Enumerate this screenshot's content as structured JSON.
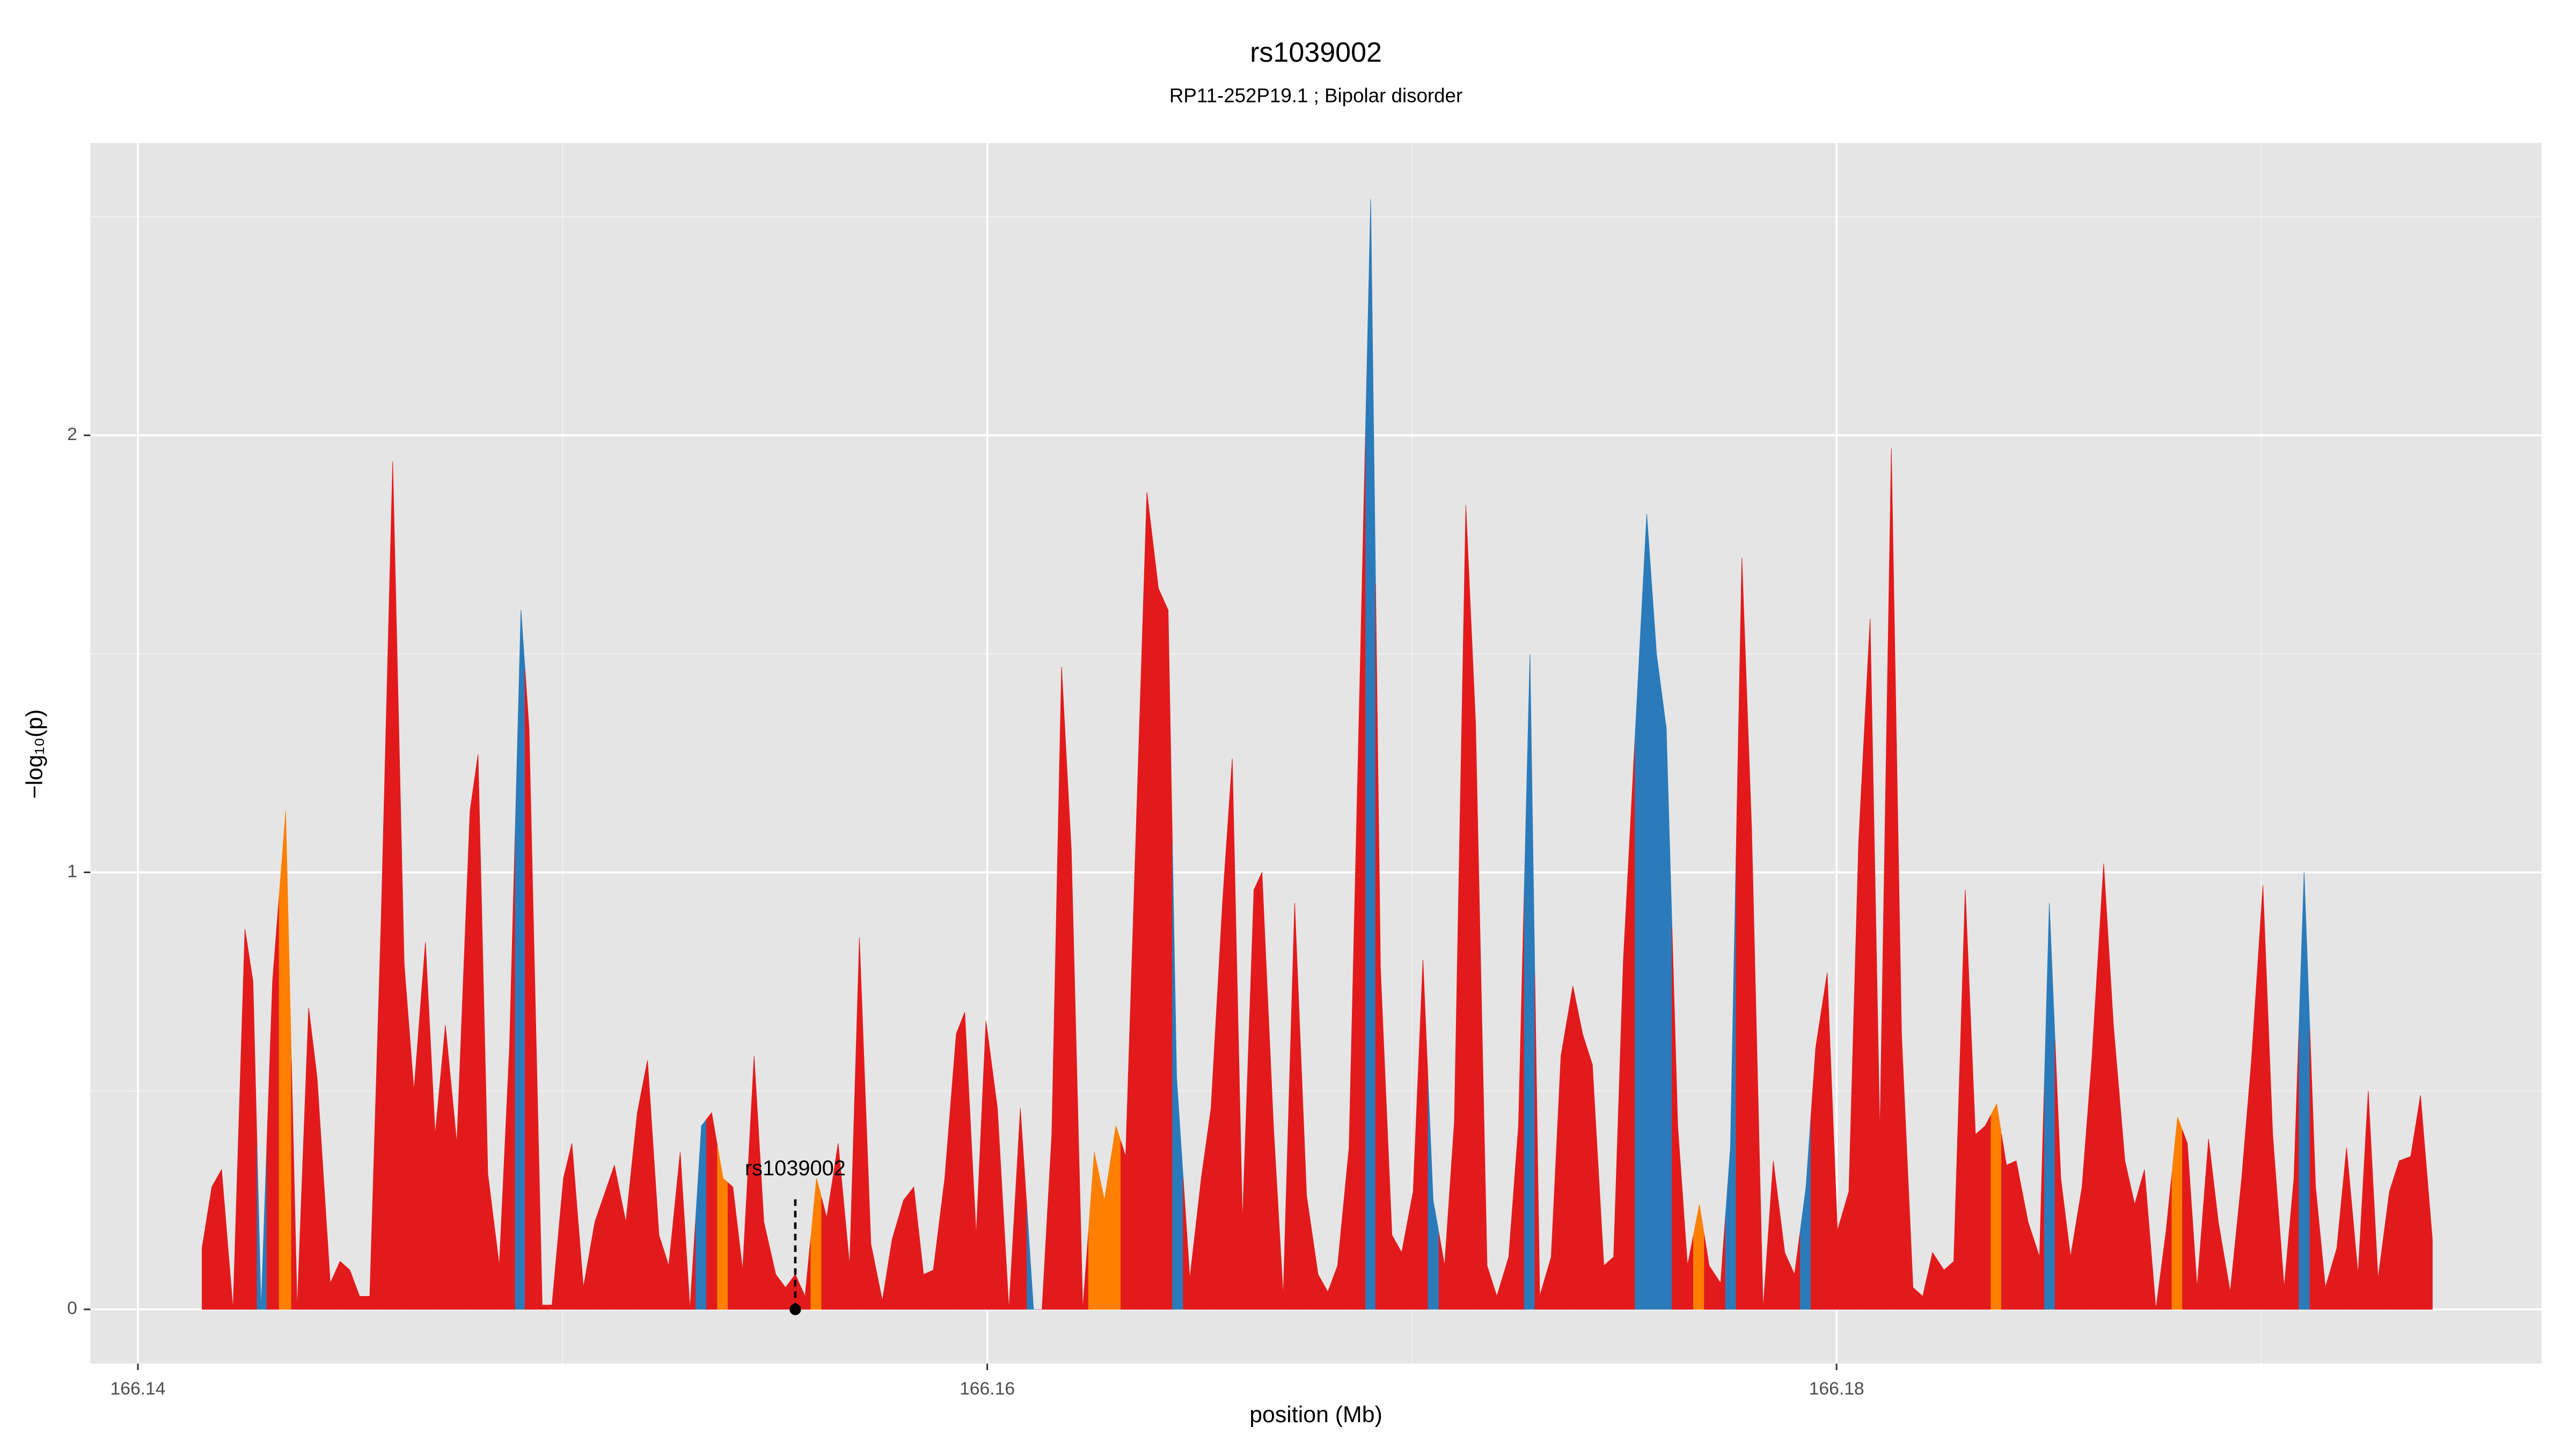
{
  "chart_data": {
    "type": "area",
    "title": "rs1039002",
    "subtitle": "RP11-252P19.1 ; Bipolar disorder",
    "x_label": "position (Mb)",
    "y_label": "−log₁₀(p)",
    "xlim": [
      166.13888,
      166.1966
    ],
    "ylim": [
      -0.124,
      2.669
    ],
    "xticks": [
      166.14,
      166.16,
      166.18
    ],
    "yticks": [
      0,
      1,
      2
    ],
    "x_minor_grid": [
      166.15,
      166.17,
      166.19
    ],
    "y_minor_grid": [
      0.5,
      1.5,
      2.5
    ],
    "grid": true,
    "x": [
      166.14151,
      166.14174,
      166.14197,
      166.14224,
      166.14252,
      166.14271,
      166.1429,
      166.14317,
      166.14348,
      166.14375,
      166.14402,
      166.14422,
      166.14453,
      166.14476,
      166.14499,
      166.14522,
      166.14546,
      166.14573,
      166.146,
      166.14627,
      166.1465,
      166.14677,
      166.147,
      166.14724,
      166.14751,
      166.14782,
      166.14801,
      166.14824,
      166.14851,
      166.14875,
      166.14902,
      166.14921,
      166.14952,
      166.14975,
      166.15002,
      166.15022,
      166.15049,
      166.15076,
      166.15122,
      166.15149,
      166.15176,
      166.152,
      166.15227,
      166.1525,
      166.15277,
      166.153,
      166.15327,
      166.15351,
      166.15378,
      166.15401,
      166.15424,
      166.15451,
      166.15474,
      166.15502,
      166.15525,
      166.15548,
      166.15571,
      166.15598,
      166.15622,
      166.15649,
      166.15676,
      166.15699,
      166.15726,
      166.15753,
      166.15776,
      166.15803,
      166.15827,
      166.1585,
      166.15873,
      166.159,
      166.15927,
      166.15947,
      166.15974,
      166.15997,
      166.16024,
      166.16051,
      166.16078,
      166.16109,
      166.16129,
      166.16152,
      166.16175,
      166.16198,
      166.16225,
      166.16252,
      166.16276,
      166.16303,
      166.16326,
      166.16376,
      166.16403,
      166.16426,
      166.16446,
      166.16477,
      166.16504,
      166.16527,
      166.16554,
      166.16577,
      166.16601,
      166.16628,
      166.16647,
      166.16674,
      166.16697,
      166.16724,
      166.16752,
      166.16779,
      166.16802,
      166.16825,
      166.16852,
      166.16879,
      166.16903,
      166.16926,
      166.16953,
      166.16976,
      166.17003,
      166.17026,
      166.1705,
      166.17077,
      166.171,
      166.17127,
      166.1715,
      166.17177,
      166.172,
      166.17228,
      166.17251,
      166.17278,
      166.17301,
      166.17328,
      166.17351,
      166.17379,
      166.17402,
      166.17425,
      166.17452,
      166.17475,
      166.17498,
      166.17553,
      166.17576,
      166.17599,
      166.17626,
      166.17649,
      166.17677,
      166.177,
      166.17727,
      166.1775,
      166.17777,
      166.178,
      166.17827,
      166.17851,
      166.17878,
      166.17901,
      166.17928,
      166.17951,
      166.17978,
      166.18002,
      166.18029,
      166.18052,
      166.18079,
      166.18102,
      166.18129,
      166.18153,
      166.1818,
      166.18203,
      166.18226,
      166.18253,
      166.18276,
      166.18303,
      166.18327,
      166.1835,
      166.18377,
      166.184,
      166.18423,
      166.18451,
      166.18478,
      166.18501,
      166.18528,
      166.18551,
      166.18578,
      166.18601,
      166.18629,
      166.18652,
      166.18679,
      166.18702,
      166.18725,
      166.18752,
      166.18776,
      166.18803,
      166.18826,
      166.18849,
      166.18876,
      166.18899,
      166.18927,
      166.18954,
      166.18977,
      166.19004,
      166.19027,
      166.19054,
      166.19077,
      166.19101,
      166.19128,
      166.19151,
      166.19178,
      166.19201,
      166.19228,
      166.19252,
      166.19275,
      166.19302,
      166.19325,
      166.19352,
      166.19375,
      166.19403
    ],
    "values": [
      0.14,
      0.28,
      0.32,
      0.0,
      0.87,
      0.75,
      0.0,
      0.75,
      1.14,
      0.0,
      0.69,
      0.53,
      0.06,
      0.11,
      0.09,
      0.03,
      0.03,
      0.9,
      1.94,
      0.79,
      0.5,
      0.84,
      0.4,
      0.65,
      0.38,
      1.14,
      1.27,
      0.31,
      0.1,
      0.6,
      1.6,
      1.33,
      0.01,
      0.01,
      0.3,
      0.38,
      0.05,
      0.2,
      0.33,
      0.2,
      0.45,
      0.57,
      0.17,
      0.1,
      0.36,
      0.0,
      0.42,
      0.45,
      0.3,
      0.28,
      0.09,
      0.58,
      0.2,
      0.08,
      0.05,
      0.08,
      0.03,
      0.3,
      0.21,
      0.38,
      0.1,
      0.85,
      0.15,
      0.02,
      0.16,
      0.25,
      0.28,
      0.08,
      0.09,
      0.3,
      0.63,
      0.68,
      0.17,
      0.66,
      0.46,
      0.0,
      0.46,
      0.0,
      0.0,
      0.4,
      1.47,
      1.05,
      0.0,
      0.36,
      0.25,
      0.42,
      0.35,
      1.87,
      1.65,
      1.6,
      0.53,
      0.07,
      0.3,
      0.46,
      0.93,
      1.26,
      0.2,
      0.96,
      1.0,
      0.42,
      0.03,
      0.93,
      0.26,
      0.08,
      0.04,
      0.1,
      0.37,
      1.5,
      2.54,
      0.78,
      0.17,
      0.13,
      0.27,
      0.8,
      0.25,
      0.1,
      0.43,
      1.84,
      1.34,
      0.1,
      0.03,
      0.12,
      0.42,
      1.5,
      0.03,
      0.12,
      0.58,
      0.74,
      0.63,
      0.56,
      0.1,
      0.12,
      0.8,
      1.82,
      1.5,
      1.33,
      0.42,
      0.1,
      0.24,
      0.1,
      0.06,
      0.37,
      1.72,
      1.1,
      0.0,
      0.34,
      0.13,
      0.08,
      0.28,
      0.6,
      0.77,
      0.18,
      0.27,
      1.07,
      1.58,
      0.4,
      1.97,
      0.63,
      0.05,
      0.03,
      0.13,
      0.09,
      0.11,
      0.96,
      0.4,
      0.42,
      0.47,
      0.33,
      0.34,
      0.2,
      0.12,
      0.93,
      0.3,
      0.12,
      0.28,
      0.57,
      1.02,
      0.65,
      0.34,
      0.24,
      0.32,
      0.0,
      0.18,
      0.44,
      0.38,
      0.05,
      0.39,
      0.2,
      0.04,
      0.3,
      0.57,
      0.97,
      0.4,
      0.05,
      0.3,
      1.0,
      0.28,
      0.05,
      0.14,
      0.37,
      0.08,
      0.5,
      0.07,
      0.27,
      0.34,
      0.35,
      0.49,
      0.16
    ],
    "colors": [
      "#e31a1c",
      "#e31a1c",
      "#e31a1c",
      "#e31a1c",
      "#e31a1c",
      "#e31a1c",
      "#2b7bba",
      "#e31a1c",
      "#ff7f00",
      "#e31a1c",
      "#e31a1c",
      "#e31a1c",
      "#e31a1c",
      "#e31a1c",
      "#e31a1c",
      "#e31a1c",
      "#e31a1c",
      "#e31a1c",
      "#e31a1c",
      "#e31a1c",
      "#e31a1c",
      "#e31a1c",
      "#e31a1c",
      "#e31a1c",
      "#e31a1c",
      "#e31a1c",
      "#e31a1c",
      "#e31a1c",
      "#e31a1c",
      "#e31a1c",
      "#2b7bba",
      "#e31a1c",
      "#e31a1c",
      "#e31a1c",
      "#e31a1c",
      "#e31a1c",
      "#e31a1c",
      "#e31a1c",
      "#e31a1c",
      "#e31a1c",
      "#e31a1c",
      "#e31a1c",
      "#e31a1c",
      "#e31a1c",
      "#e31a1c",
      "#e31a1c",
      "#2b7bba",
      "#e31a1c",
      "#ff7f00",
      "#e31a1c",
      "#e31a1c",
      "#e31a1c",
      "#e31a1c",
      "#e31a1c",
      "#e31a1c",
      "#e31a1c",
      "#e31a1c",
      "#ff7f00",
      "#e31a1c",
      "#e31a1c",
      "#e31a1c",
      "#e31a1c",
      "#e31a1c",
      "#e31a1c",
      "#e31a1c",
      "#e31a1c",
      "#e31a1c",
      "#e31a1c",
      "#e31a1c",
      "#e31a1c",
      "#e31a1c",
      "#e31a1c",
      "#e31a1c",
      "#e31a1c",
      "#e31a1c",
      "#e31a1c",
      "#e31a1c",
      "#2b7bba",
      "#e31a1c",
      "#e31a1c",
      "#e31a1c",
      "#e31a1c",
      "#e31a1c",
      "#ff7f00",
      "#ff7f00",
      "#ff7f00",
      "#e31a1c",
      "#e31a1c",
      "#e31a1c",
      "#e31a1c",
      "#2b7bba",
      "#e31a1c",
      "#e31a1c",
      "#e31a1c",
      "#e31a1c",
      "#e31a1c",
      "#e31a1c",
      "#e31a1c",
      "#e31a1c",
      "#e31a1c",
      "#e31a1c",
      "#e31a1c",
      "#e31a1c",
      "#e31a1c",
      "#e31a1c",
      "#e31a1c",
      "#e31a1c",
      "#e31a1c",
      "#2b7bba",
      "#e31a1c",
      "#e31a1c",
      "#e31a1c",
      "#e31a1c",
      "#e31a1c",
      "#2b7bba",
      "#e31a1c",
      "#e31a1c",
      "#e31a1c",
      "#e31a1c",
      "#e31a1c",
      "#e31a1c",
      "#e31a1c",
      "#e31a1c",
      "#2b7bba",
      "#e31a1c",
      "#e31a1c",
      "#e31a1c",
      "#e31a1c",
      "#e31a1c",
      "#e31a1c",
      "#e31a1c",
      "#e31a1c",
      "#e31a1c",
      "#2b7bba",
      "#2b7bba",
      "#2b7bba",
      "#e31a1c",
      "#e31a1c",
      "#ff7f00",
      "#e31a1c",
      "#e31a1c",
      "#2b7bba",
      "#e31a1c",
      "#e31a1c",
      "#e31a1c",
      "#e31a1c",
      "#e31a1c",
      "#e31a1c",
      "#2b7bba",
      "#e31a1c",
      "#e31a1c",
      "#e31a1c",
      "#e31a1c",
      "#e31a1c",
      "#e31a1c",
      "#e31a1c",
      "#e31a1c",
      "#e31a1c",
      "#e31a1c",
      "#e31a1c",
      "#e31a1c",
      "#e31a1c",
      "#e31a1c",
      "#e31a1c",
      "#e31a1c",
      "#e31a1c",
      "#ff7f00",
      "#e31a1c",
      "#e31a1c",
      "#e31a1c",
      "#e31a1c",
      "#2b7bba",
      "#e31a1c",
      "#e31a1c",
      "#e31a1c",
      "#e31a1c",
      "#e31a1c",
      "#e31a1c",
      "#e31a1c",
      "#e31a1c",
      "#e31a1c",
      "#e31a1c",
      "#e31a1c",
      "#ff7f00",
      "#e31a1c",
      "#e31a1c",
      "#e31a1c",
      "#e31a1c",
      "#e31a1c",
      "#e31a1c",
      "#e31a1c",
      "#e31a1c",
      "#e31a1c",
      "#e31a1c",
      "#e31a1c",
      "#2b7bba",
      "#e31a1c",
      "#e31a1c",
      "#e31a1c",
      "#e31a1c",
      "#e31a1c",
      "#e31a1c",
      "#e31a1c",
      "#e31a1c",
      "#e31a1c",
      "#e31a1c",
      "#e31a1c",
      "#e31a1c"
    ],
    "annotation": {
      "text": "rs1039002",
      "x": 166.15548,
      "y_point": 0,
      "y_line_top": 0.26,
      "y_text": 0.32
    }
  }
}
